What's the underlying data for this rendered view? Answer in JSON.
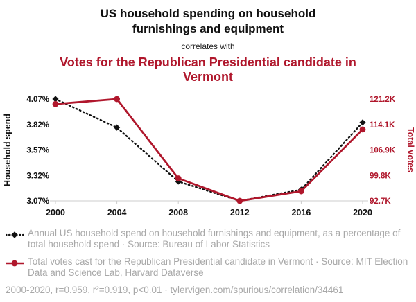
{
  "header": {
    "title": "US household spending on household furnishings and equipment",
    "connector": "correlates with",
    "red_title": "Votes for the Republican Presidential candidate in Vermont"
  },
  "legend": {
    "items": [
      {
        "icon": "black-dotted-diamond-marker-icon",
        "text": "Annual US household spend on household furnishings and equipment, as a percentage of total household spend · Source: Bureau of Labor Statistics"
      },
      {
        "icon": "red-solid-circle-marker-icon",
        "text": "Total votes cast for the Republican Presidential candidate in Vermont · Source: MIT Election Data and Science Lab, Harvard Dataverse"
      }
    ]
  },
  "footer": {
    "text": "2000-2020, r=0.959, r²=0.919, p<0.01 · tylervigen.com/spurious/correlation/34461"
  },
  "colors": {
    "accent_red": "#b0172c",
    "text_gray": "#a8a8a8",
    "axis_gray": "#cccccc",
    "black": "#111111"
  },
  "chart_data": {
    "type": "line",
    "title": "US household spending on household furnishings and equipment correlates with Votes for the Republican Presidential candidate in Vermont",
    "x": [
      2000,
      2004,
      2008,
      2012,
      2016,
      2020
    ],
    "x_tick_labels": [
      "2000",
      "2004",
      "2008",
      "2012",
      "2016",
      "2020"
    ],
    "left_axis": {
      "label": "Household spend",
      "ticks": [
        "4.07%",
        "3.82%",
        "3.57%",
        "3.32%",
        "3.07%"
      ],
      "min": 3.07,
      "max": 4.07
    },
    "right_axis": {
      "label": "Total votes",
      "ticks": [
        "121.2K",
        "114.1K",
        "106.9K",
        "99.8K",
        "92.7K"
      ],
      "min": 92.7,
      "max": 121.2
    },
    "series": [
      {
        "name": "household-spend-percent",
        "axis": "left",
        "color": "#111111",
        "style": "dotted-diamond",
        "values": [
          4.07,
          3.79,
          3.26,
          3.07,
          3.18,
          3.84
        ]
      },
      {
        "name": "republican-votes-vermont",
        "axis": "right",
        "color": "#b0172c",
        "style": "solid-circle",
        "values": [
          119.8,
          121.2,
          99.0,
          92.7,
          95.4,
          112.7
        ]
      }
    ],
    "grid": false,
    "legend_position": "bottom"
  }
}
